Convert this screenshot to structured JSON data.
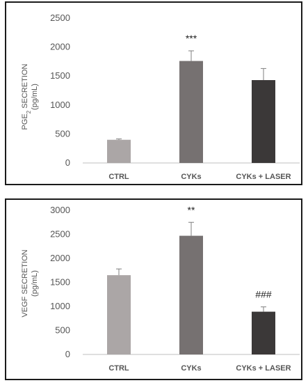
{
  "charts": [
    {
      "type": "bar",
      "categories": [
        "CTRL",
        "CYKs",
        "CYKs + LASER"
      ],
      "values": [
        400,
        1760,
        1430
      ],
      "errors": [
        15,
        175,
        200
      ],
      "annotations": [
        "",
        "***",
        ""
      ],
      "colors": [
        "#aba6a6",
        "#767171",
        "#3b3838"
      ],
      "ylabel_main": "PGE",
      "ylabel_sub": "2",
      "ylabel_rest": " SECRETION",
      "ylabel_unit": "(pg/mL)",
      "ylim": [
        0,
        2500
      ],
      "yticks": [
        0,
        500,
        1000,
        1500,
        2000,
        2500
      ],
      "grid": false
    },
    {
      "type": "bar",
      "categories": [
        "CTRL",
        "CYKs",
        "CYKs + LASER"
      ],
      "values": [
        1650,
        2470,
        890
      ],
      "errors": [
        130,
        280,
        100
      ],
      "annotations": [
        "",
        "**",
        "###"
      ],
      "colors": [
        "#aba6a6",
        "#767171",
        "#3b3838"
      ],
      "ylabel_main": "VEGF SECRETION",
      "ylabel_sub": "",
      "ylabel_rest": "",
      "ylabel_unit": "(pg/mL)",
      "ylim": [
        0,
        3000
      ],
      "yticks": [
        0,
        500,
        1000,
        1500,
        2000,
        2500,
        3000
      ],
      "grid": false
    }
  ]
}
